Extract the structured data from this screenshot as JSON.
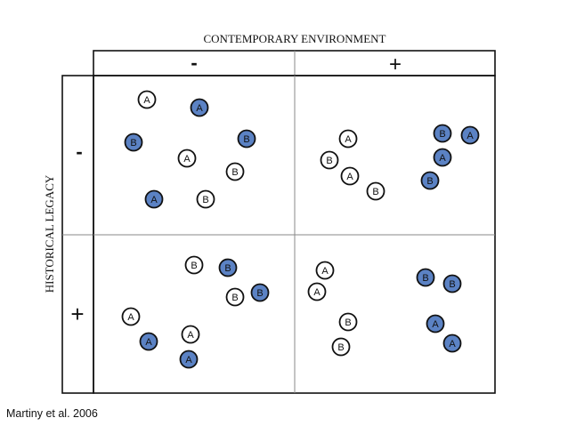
{
  "header": {
    "title": "CONTEMPORARY ENVIRONMENT",
    "col_minus": "-",
    "col_plus": "+"
  },
  "side": {
    "title": "HISTORICAL LEGACY",
    "row_minus": "-",
    "row_plus": "+"
  },
  "colors": {
    "filled": "#5b82c4",
    "open": "#ffffff",
    "stroke": "#111111",
    "grid": "#8a8a8a"
  },
  "quadrants": {
    "top_left": {
      "row": "-",
      "col": "-",
      "circles": [
        {
          "label": "A",
          "filled": false
        },
        {
          "label": "A",
          "filled": true
        },
        {
          "label": "B",
          "filled": true
        },
        {
          "label": "B",
          "filled": true
        },
        {
          "label": "A",
          "filled": false
        },
        {
          "label": "B",
          "filled": false
        },
        {
          "label": "A",
          "filled": true
        },
        {
          "label": "B",
          "filled": false
        }
      ]
    },
    "top_right": {
      "row": "-",
      "col": "+",
      "circles": [
        {
          "label": "A",
          "filled": false
        },
        {
          "label": "B",
          "filled": false
        },
        {
          "label": "A",
          "filled": false
        },
        {
          "label": "B",
          "filled": false
        },
        {
          "label": "B",
          "filled": true
        },
        {
          "label": "A",
          "filled": true
        },
        {
          "label": "A",
          "filled": true
        },
        {
          "label": "B",
          "filled": true
        }
      ]
    },
    "bottom_left": {
      "row": "+",
      "col": "-",
      "circles": [
        {
          "label": "B",
          "filled": false
        },
        {
          "label": "B",
          "filled": true
        },
        {
          "label": "B",
          "filled": false
        },
        {
          "label": "B",
          "filled": true
        },
        {
          "label": "A",
          "filled": false
        },
        {
          "label": "A",
          "filled": true
        },
        {
          "label": "A",
          "filled": false
        },
        {
          "label": "A",
          "filled": true
        }
      ]
    },
    "bottom_right": {
      "row": "+",
      "col": "+",
      "circles": [
        {
          "label": "A",
          "filled": false
        },
        {
          "label": "A",
          "filled": false
        },
        {
          "label": "B",
          "filled": false
        },
        {
          "label": "B",
          "filled": false
        },
        {
          "label": "B",
          "filled": true
        },
        {
          "label": "B",
          "filled": true
        },
        {
          "label": "A",
          "filled": true
        },
        {
          "label": "A",
          "filled": true
        }
      ]
    }
  },
  "citation": "Martiny et al. 2006"
}
